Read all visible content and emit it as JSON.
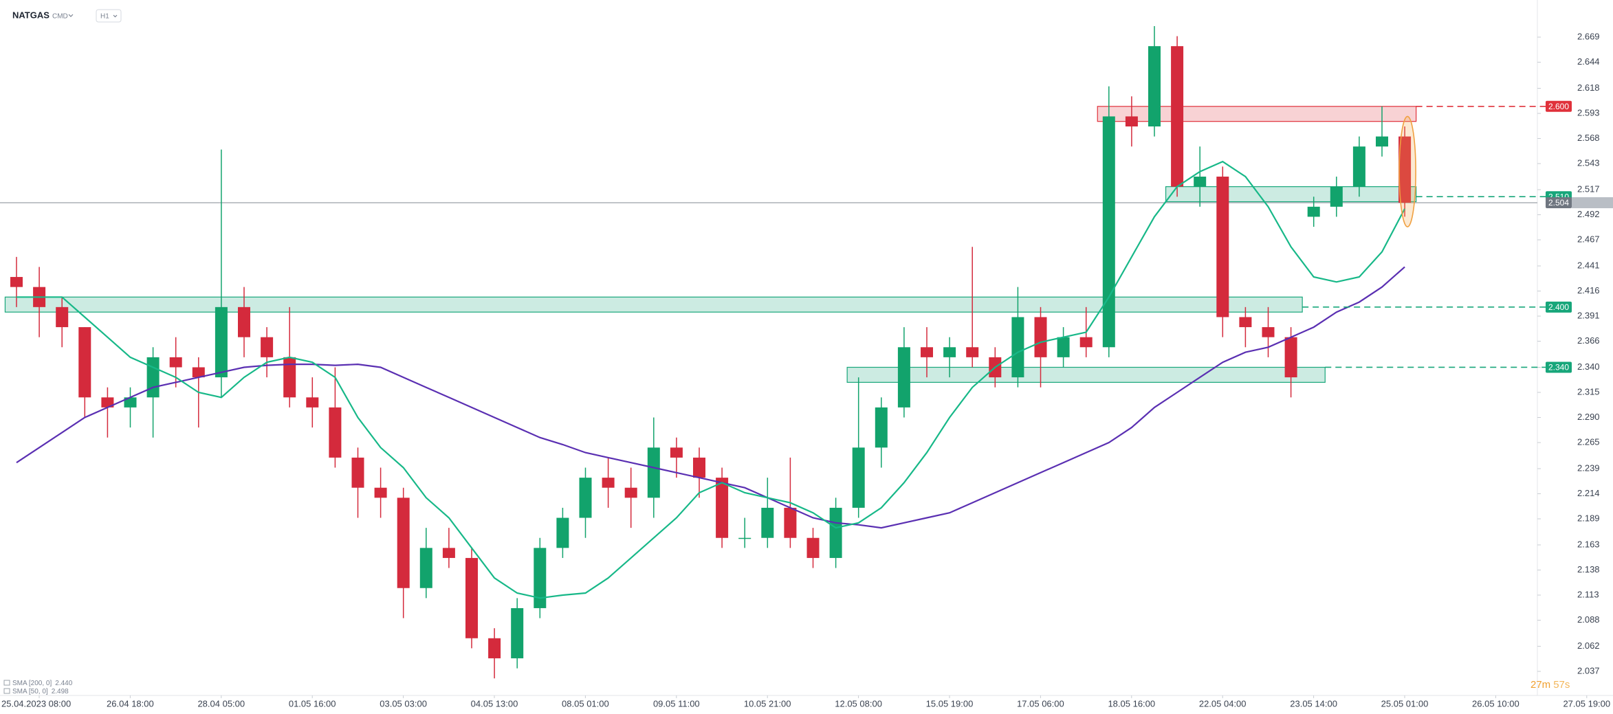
{
  "header": {
    "symbol": "NATGAS",
    "market": "CMD",
    "interval": "H1"
  },
  "chart_data": {
    "type": "candlestick",
    "candles": {
      "open": [
        2.43,
        2.42,
        2.4,
        2.38,
        2.31,
        2.3,
        2.31,
        2.35,
        2.34,
        2.33,
        2.4,
        2.37,
        2.35,
        2.31,
        2.3,
        2.25,
        2.22,
        2.21,
        2.12,
        2.16,
        2.15,
        2.07,
        2.05,
        2.1,
        2.16,
        2.19,
        2.23,
        2.22,
        2.21,
        2.26,
        2.25,
        2.23,
        2.17,
        2.17,
        2.2,
        2.17,
        2.15,
        2.2,
        2.26,
        2.3,
        2.36,
        2.35,
        2.36,
        2.35,
        2.33,
        2.39,
        2.35,
        2.37,
        2.36,
        2.59,
        2.58,
        2.66,
        2.52,
        2.53,
        2.39,
        2.38,
        2.37,
        2.49,
        2.5,
        2.52,
        2.56,
        2.57
      ],
      "high": [
        2.45,
        2.44,
        2.41,
        2.38,
        2.32,
        2.32,
        2.36,
        2.37,
        2.35,
        2.557,
        2.42,
        2.38,
        2.4,
        2.33,
        2.34,
        2.26,
        2.24,
        2.22,
        2.18,
        2.18,
        2.16,
        2.08,
        2.11,
        2.17,
        2.2,
        2.24,
        2.25,
        2.24,
        2.29,
        2.27,
        2.26,
        2.24,
        2.19,
        2.23,
        2.25,
        2.18,
        2.21,
        2.33,
        2.31,
        2.38,
        2.38,
        2.37,
        2.46,
        2.36,
        2.42,
        2.4,
        2.38,
        2.4,
        2.62,
        2.61,
        2.68,
        2.67,
        2.56,
        2.54,
        2.4,
        2.4,
        2.38,
        2.51,
        2.53,
        2.57,
        2.6,
        2.58
      ],
      "low": [
        2.4,
        2.37,
        2.36,
        2.29,
        2.27,
        2.28,
        2.27,
        2.32,
        2.28,
        2.31,
        2.35,
        2.33,
        2.3,
        2.28,
        2.24,
        2.19,
        2.19,
        2.09,
        2.11,
        2.14,
        2.06,
        2.03,
        2.04,
        2.09,
        2.15,
        2.17,
        2.2,
        2.18,
        2.19,
        2.23,
        2.21,
        2.16,
        2.16,
        2.16,
        2.16,
        2.14,
        2.14,
        2.19,
        2.24,
        2.29,
        2.33,
        2.33,
        2.34,
        2.32,
        2.32,
        2.32,
        2.34,
        2.35,
        2.35,
        2.56,
        2.57,
        2.51,
        2.5,
        2.37,
        2.36,
        2.35,
        2.31,
        2.48,
        2.49,
        2.51,
        2.55,
        2.49
      ],
      "close": [
        2.42,
        2.4,
        2.38,
        2.31,
        2.3,
        2.31,
        2.35,
        2.34,
        2.33,
        2.4,
        2.37,
        2.35,
        2.31,
        2.3,
        2.25,
        2.22,
        2.21,
        2.12,
        2.16,
        2.15,
        2.07,
        2.05,
        2.1,
        2.16,
        2.19,
        2.23,
        2.22,
        2.21,
        2.26,
        2.25,
        2.23,
        2.17,
        2.17,
        2.2,
        2.17,
        2.15,
        2.2,
        2.26,
        2.3,
        2.36,
        2.35,
        2.36,
        2.35,
        2.33,
        2.39,
        2.35,
        2.37,
        2.36,
        2.59,
        2.58,
        2.66,
        2.52,
        2.53,
        2.39,
        2.38,
        2.37,
        2.33,
        2.5,
        2.52,
        2.56,
        2.57,
        2.504
      ]
    },
    "up_color": "#12a36c",
    "down_color": "#d42a3c",
    "series": [
      {
        "name": "SMA [200, 0]",
        "color": "#5a2fb2",
        "last_value_label": "2.440",
        "values": [
          2.245,
          2.26,
          2.275,
          2.29,
          2.3,
          2.31,
          2.32,
          2.325,
          2.33,
          2.335,
          2.34,
          2.342,
          2.343,
          2.343,
          2.342,
          2.343,
          2.34,
          2.33,
          2.32,
          2.31,
          2.3,
          2.29,
          2.28,
          2.27,
          2.263,
          2.255,
          2.25,
          2.245,
          2.24,
          2.235,
          2.23,
          2.225,
          2.22,
          2.21,
          2.2,
          2.19,
          2.185,
          2.183,
          2.18,
          2.185,
          2.19,
          2.195,
          2.205,
          2.215,
          2.225,
          2.235,
          2.245,
          2.255,
          2.265,
          2.28,
          2.3,
          2.315,
          2.33,
          2.345,
          2.355,
          2.36,
          2.37,
          2.38,
          2.395,
          2.405,
          2.42,
          2.44
        ]
      },
      {
        "name": "SMA [50, 0]",
        "color": "#17b888",
        "last_value_label": "2.498",
        "values": [
          2.41,
          2.41,
          2.41,
          2.39,
          2.37,
          2.35,
          2.34,
          2.33,
          2.315,
          2.31,
          2.33,
          2.345,
          2.35,
          2.345,
          2.33,
          2.29,
          2.26,
          2.24,
          2.21,
          2.19,
          2.16,
          2.13,
          2.115,
          2.11,
          2.113,
          2.115,
          2.13,
          2.15,
          2.17,
          2.19,
          2.215,
          2.225,
          2.215,
          2.21,
          2.205,
          2.195,
          2.18,
          2.185,
          2.2,
          2.225,
          2.255,
          2.29,
          2.32,
          2.34,
          2.355,
          2.365,
          2.37,
          2.375,
          2.41,
          2.45,
          2.49,
          2.52,
          2.535,
          2.545,
          2.53,
          2.5,
          2.46,
          2.43,
          2.425,
          2.43,
          2.455,
          2.498
        ]
      }
    ],
    "levels": [
      {
        "value": 2.6,
        "label": "2.600",
        "color": "#e0313b",
        "zone": {
          "low": 2.585,
          "high": 2.6,
          "from": 48,
          "to": 61
        }
      },
      {
        "value": 2.51,
        "label": "2.510",
        "color": "#17a67a",
        "zone": {
          "low": 2.505,
          "high": 2.52,
          "from": 51,
          "to": 61
        }
      },
      {
        "value": 2.4,
        "label": "2.400",
        "color": "#17a67a",
        "zone": {
          "low": 2.395,
          "high": 2.41,
          "from": 0,
          "to": 56
        }
      },
      {
        "value": 2.34,
        "label": "2.340",
        "color": "#17a67a",
        "zone": {
          "low": 2.325,
          "high": 2.34,
          "from": 37,
          "to": 57
        }
      }
    ],
    "last_price": 2.504,
    "xtick_labels": [
      "25.04.2023 08:00",
      "26.04 18:00",
      "28.04 05:00",
      "01.05 16:00",
      "03.05 03:00",
      "04.05 13:00",
      "08.05 01:00",
      "09.05 11:00",
      "10.05 21:00",
      "12.05 08:00",
      "15.05 19:00",
      "17.05 06:00",
      "18.05 16:00",
      "22.05 04:00",
      "23.05 14:00",
      "25.05 01:00",
      "26.05 10:00",
      "27.05 19:00"
    ],
    "ylim": [
      2.013,
      2.706
    ],
    "yticks": [
      2.669,
      2.644,
      2.618,
      2.593,
      2.568,
      2.543,
      2.517,
      2.492,
      2.467,
      2.441,
      2.416,
      2.391,
      2.366,
      {
        "value": 2.34,
        "label": "2.340"
      },
      2.315,
      {
        "value": 2.29,
        "label": "2.290"
      },
      2.265,
      2.239,
      2.214,
      2.189,
      2.163,
      2.138,
      2.113,
      2.088,
      2.062,
      2.037
    ],
    "timer": {
      "minutes": "27m",
      "seconds": "57s"
    }
  }
}
